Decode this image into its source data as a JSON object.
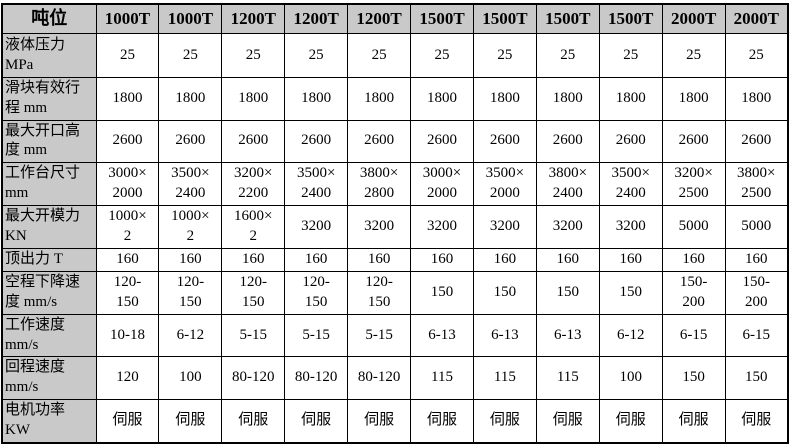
{
  "table": {
    "corner_header": "吨位",
    "column_headers": [
      "1000T",
      "1000T",
      "1200T",
      "1200T",
      "1200T",
      "1500T",
      "1500T",
      "1500T",
      "1500T",
      "2000T",
      "2000T"
    ],
    "rows": [
      {
        "label": "液体压力\nMPa",
        "values": [
          "25",
          "25",
          "25",
          "25",
          "25",
          "25",
          "25",
          "25",
          "25",
          "25",
          "25"
        ]
      },
      {
        "label": "滑块有效行\n程 mm",
        "values": [
          "1800",
          "1800",
          "1800",
          "1800",
          "1800",
          "1800",
          "1800",
          "1800",
          "1800",
          "1800",
          "1800"
        ]
      },
      {
        "label": "最大开口高\n度 mm",
        "values": [
          "2600",
          "2600",
          "2600",
          "2600",
          "2600",
          "2600",
          "2600",
          "2600",
          "2600",
          "2600",
          "2600"
        ]
      },
      {
        "label": "工作台尺寸\nmm",
        "values": [
          "3000×\n2000",
          "3500×\n2400",
          "3200×\n2200",
          "3500×\n2400",
          "3800×\n2800",
          "3000×\n2000",
          "3500×\n2000",
          "3800×\n2400",
          "3500×\n2400",
          "3200×\n2500",
          "3800×\n2500"
        ]
      },
      {
        "label": "最大开模力\nKN",
        "values": [
          "1000×\n2",
          "1000×\n2",
          "1600×\n2",
          "3200",
          "3200",
          "3200",
          "3200",
          "3200",
          "3200",
          "5000",
          "5000"
        ]
      },
      {
        "label": "顶出力 T",
        "values": [
          "160",
          "160",
          "160",
          "160",
          "160",
          "160",
          "160",
          "160",
          "160",
          "160",
          "160"
        ]
      },
      {
        "label": "空程下降速\n度 mm/s",
        "values": [
          "120-\n150",
          "120-\n150",
          "120-\n150",
          "120-\n150",
          "120-\n150",
          "150",
          "150",
          "150",
          "150",
          "150-\n200",
          "150-\n200"
        ]
      },
      {
        "label": "工作速度\nmm/s",
        "values": [
          "10-18",
          "6-12",
          "5-15",
          "5-15",
          "5-15",
          "6-13",
          "6-13",
          "6-13",
          "6-12",
          "6-15",
          "6-15"
        ]
      },
      {
        "label": "回程速度\nmm/s",
        "values": [
          "120",
          "100",
          "80-120",
          "80-120",
          "80-120",
          "115",
          "115",
          "115",
          "100",
          "150",
          "150"
        ]
      },
      {
        "label": "电机功率\nKW",
        "values": [
          "伺服",
          "伺服",
          "伺服",
          "伺服",
          "伺服",
          "伺服",
          "伺服",
          "伺服",
          "伺服",
          "伺服",
          "伺服"
        ]
      }
    ]
  },
  "colors": {
    "header_bg": "#c9c9c9",
    "cell_bg": "#ffffff",
    "border": "#000000",
    "text": "#000000"
  }
}
